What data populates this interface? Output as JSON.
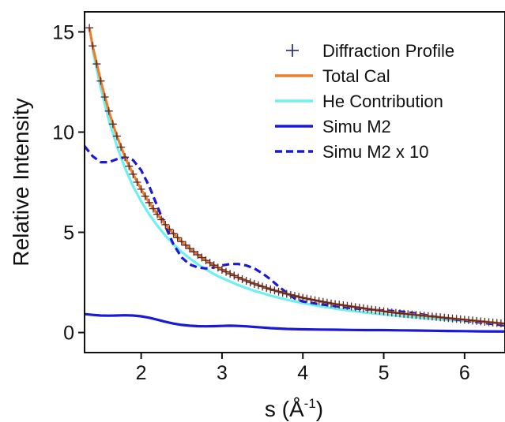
{
  "chart_data": {
    "type": "line",
    "xlabel": "s (Å",
    "xlabel_sup": "-1",
    "xlabel_end": ")",
    "ylabel": "Relative Intensity",
    "xlim": [
      1.3,
      6.5
    ],
    "ylim": [
      -1,
      16
    ],
    "x_ticks": [
      2,
      3,
      4,
      5,
      6
    ],
    "y_ticks": [
      0,
      5,
      10,
      15
    ],
    "x_tick_labels": [
      "2",
      "3",
      "4",
      "5",
      "6"
    ],
    "y_tick_labels": [
      "0",
      "5",
      "10",
      "15"
    ],
    "grid": false,
    "legend_position": "top-right",
    "series": [
      {
        "name": "Diffraction Profile",
        "style": "plus-markers",
        "color": "#2b3a8f",
        "marker_edge": "#5a2a2a",
        "x": [
          1.36,
          1.4,
          1.45,
          1.5,
          1.55,
          1.6,
          1.65,
          1.7,
          1.75,
          1.8,
          1.85,
          1.9,
          1.95,
          2.0,
          2.05,
          2.1,
          2.15,
          2.2,
          2.25,
          2.3,
          2.35,
          2.4,
          2.45,
          2.5,
          2.55,
          2.6,
          2.65,
          2.7,
          2.75,
          2.8,
          2.85,
          2.9,
          2.95,
          3.0,
          3.05,
          3.1,
          3.15,
          3.2,
          3.25,
          3.3,
          3.35,
          3.4,
          3.45,
          3.5,
          3.55,
          3.6,
          3.65,
          3.7,
          3.75,
          3.8,
          3.85,
          3.9,
          3.95,
          4.0,
          4.05,
          4.1,
          4.15,
          4.2,
          4.25,
          4.3,
          4.35,
          4.4,
          4.45,
          4.5,
          4.55,
          4.6,
          4.65,
          4.7,
          4.75,
          4.8,
          4.85,
          4.9,
          4.95,
          5.0,
          5.05,
          5.1,
          5.15,
          5.2,
          5.25,
          5.3,
          5.35,
          5.4,
          5.45,
          5.5,
          5.55,
          5.6,
          5.65,
          5.7,
          5.75,
          5.8,
          5.85,
          5.9,
          5.95,
          6.0,
          6.05,
          6.1,
          6.15,
          6.2,
          6.25,
          6.3,
          6.35,
          6.4,
          6.45,
          6.5
        ],
        "values": [
          15.2,
          14.3,
          13.4,
          12.55,
          11.75,
          11.05,
          10.4,
          9.8,
          9.25,
          8.75,
          8.3,
          7.9,
          7.5,
          7.15,
          6.8,
          6.48,
          6.18,
          5.9,
          5.63,
          5.38,
          5.15,
          4.93,
          4.73,
          4.54,
          4.36,
          4.19,
          4.03,
          3.88,
          3.74,
          3.6,
          3.48,
          3.36,
          3.24,
          3.13,
          3.03,
          2.93,
          2.84,
          2.75,
          2.66,
          2.58,
          2.5,
          2.43,
          2.36,
          2.29,
          2.22,
          2.16,
          2.1,
          2.04,
          1.98,
          1.93,
          1.88,
          1.83,
          1.78,
          1.73,
          1.69,
          1.65,
          1.61,
          1.57,
          1.53,
          1.49,
          1.45,
          1.42,
          1.39,
          1.36,
          1.33,
          1.3,
          1.27,
          1.24,
          1.21,
          1.18,
          1.15,
          1.12,
          1.09,
          1.06,
          1.03,
          1.0,
          0.98,
          0.96,
          0.94,
          0.92,
          0.9,
          0.88,
          0.86,
          0.84,
          0.82,
          0.8,
          0.78,
          0.76,
          0.74,
          0.72,
          0.7,
          0.68,
          0.66,
          0.64,
          0.62,
          0.6,
          0.58,
          0.56,
          0.54,
          0.52,
          0.5,
          0.48,
          0.46,
          0.44
        ]
      },
      {
        "name": "Total Cal",
        "style": "solid",
        "color": "#f07c2a",
        "x": [
          1.36,
          1.4,
          1.5,
          1.6,
          1.7,
          1.8,
          1.9,
          2.0,
          2.1,
          2.2,
          2.3,
          2.4,
          2.5,
          2.6,
          2.7,
          2.8,
          2.9,
          3.0,
          3.2,
          3.4,
          3.6,
          3.8,
          4.0,
          4.2,
          4.4,
          4.6,
          4.8,
          5.0,
          5.2,
          5.4,
          5.6,
          5.8,
          6.0,
          6.2,
          6.5
        ],
        "values": [
          15.2,
          14.3,
          12.55,
          11.05,
          9.8,
          8.75,
          7.9,
          7.15,
          6.48,
          5.9,
          5.38,
          4.93,
          4.54,
          4.19,
          3.88,
          3.6,
          3.36,
          3.13,
          2.75,
          2.43,
          2.16,
          1.93,
          1.73,
          1.57,
          1.42,
          1.3,
          1.18,
          1.06,
          0.96,
          0.88,
          0.8,
          0.72,
          0.64,
          0.56,
          0.44
        ]
      },
      {
        "name": "He Contribution",
        "style": "solid",
        "color": "#6ef0f0",
        "x": [
          1.4,
          1.5,
          1.6,
          1.7,
          1.8,
          1.9,
          2.0,
          2.1,
          2.2,
          2.3,
          2.4,
          2.5,
          2.6,
          2.7,
          2.8,
          2.9,
          3.0,
          3.2,
          3.4,
          3.6,
          3.8,
          4.0,
          4.2,
          4.4,
          4.6,
          4.8,
          5.0,
          5.2,
          5.4,
          5.6,
          5.8,
          6.0,
          6.2,
          6.5
        ],
        "values": [
          14.1,
          12.2,
          10.6,
          9.3,
          8.2,
          7.3,
          6.55,
          5.9,
          5.33,
          4.83,
          4.4,
          4.02,
          3.7,
          3.41,
          3.15,
          2.92,
          2.72,
          2.37,
          2.08,
          1.84,
          1.64,
          1.47,
          1.32,
          1.19,
          1.08,
          0.98,
          0.9,
          0.82,
          0.75,
          0.69,
          0.63,
          0.58,
          0.53,
          0.45
        ]
      },
      {
        "name": "Simu M2",
        "style": "solid",
        "color": "#1a1ad6",
        "x": [
          1.3,
          1.4,
          1.5,
          1.6,
          1.7,
          1.8,
          1.9,
          2.0,
          2.1,
          2.2,
          2.3,
          2.4,
          2.5,
          2.6,
          2.7,
          2.8,
          2.9,
          3.0,
          3.1,
          3.2,
          3.3,
          3.4,
          3.5,
          3.6,
          3.8,
          4.0,
          4.2,
          4.4,
          4.6,
          4.8,
          5.0,
          5.2,
          5.4,
          5.6,
          5.8,
          6.0,
          6.2,
          6.5
        ],
        "values": [
          0.92,
          0.88,
          0.85,
          0.84,
          0.85,
          0.86,
          0.85,
          0.81,
          0.74,
          0.64,
          0.54,
          0.45,
          0.38,
          0.34,
          0.32,
          0.31,
          0.32,
          0.33,
          0.34,
          0.33,
          0.31,
          0.28,
          0.25,
          0.22,
          0.18,
          0.16,
          0.15,
          0.14,
          0.13,
          0.12,
          0.12,
          0.11,
          0.1,
          0.09,
          0.08,
          0.07,
          0.06,
          0.05
        ]
      },
      {
        "name": "Simu M2 x 10",
        "style": "dashed",
        "color": "#1a1ad6",
        "x": [
          1.3,
          1.4,
          1.5,
          1.6,
          1.7,
          1.8,
          1.9,
          2.0,
          2.1,
          2.2,
          2.3,
          2.4,
          2.5,
          2.6,
          2.7,
          2.8,
          2.9,
          3.0,
          3.1,
          3.2,
          3.3,
          3.4,
          3.5,
          3.6,
          3.7,
          3.8,
          3.9,
          4.0,
          4.2,
          4.4,
          4.6,
          4.8,
          5.0,
          5.2,
          5.4,
          5.6,
          5.8,
          6.0,
          6.2,
          6.5
        ],
        "values": [
          9.3,
          8.8,
          8.5,
          8.5,
          8.65,
          8.75,
          8.6,
          8.1,
          7.3,
          6.3,
          5.3,
          4.4,
          3.75,
          3.4,
          3.25,
          3.2,
          3.25,
          3.35,
          3.42,
          3.42,
          3.35,
          3.2,
          2.95,
          2.65,
          2.3,
          1.98,
          1.7,
          1.55,
          1.42,
          1.32,
          1.22,
          1.15,
          1.1,
          1.05,
          0.95,
          0.82,
          0.7,
          0.6,
          0.5,
          0.35
        ]
      }
    ]
  }
}
